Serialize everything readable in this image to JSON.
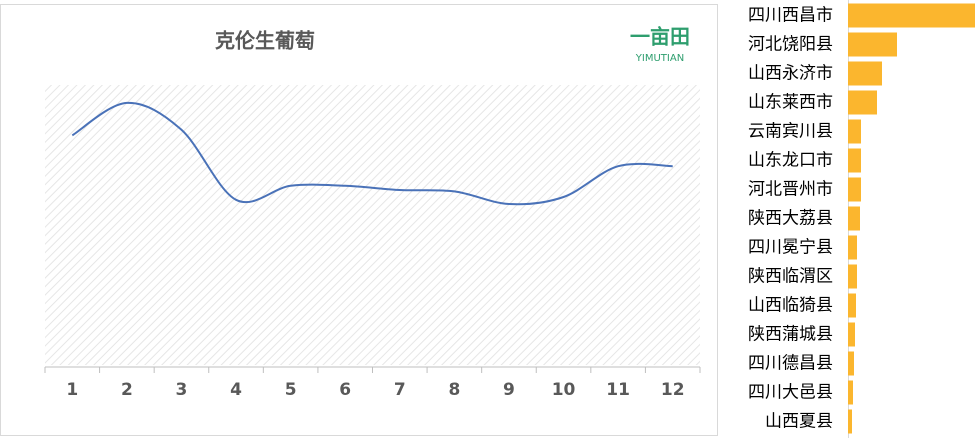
{
  "chart_data": [
    {
      "type": "line",
      "title": "克伦生葡萄",
      "logo": "一亩田",
      "logo_text": "YIMUTIAN",
      "categories": [
        "1",
        "2",
        "3",
        "4",
        "5",
        "6",
        "7",
        "8",
        "9",
        "10",
        "11",
        "12"
      ],
      "values": [
        82,
        93.6,
        84,
        59,
        64,
        64,
        62.5,
        62,
        57.5,
        60,
        71,
        71
      ],
      "color": "#4a72b8",
      "ylim": [
        0,
        100
      ],
      "smooth": true
    },
    {
      "type": "hbar",
      "categories": [
        "四川西昌市",
        "河北饶阳县",
        "山西永济市",
        "山东莱西市",
        "云南宾川县",
        "山东龙口市",
        "河北晋州市",
        "陕西大荔县",
        "四川冕宁县",
        "陕西临渭区",
        "山西临猗县",
        "陕西蒲城县",
        "四川德昌县",
        "四川大邑县",
        "山西夏县"
      ],
      "values": [
        127,
        49,
        34,
        29,
        13,
        13,
        13,
        12,
        9,
        9,
        8,
        7,
        6,
        5,
        4
      ],
      "color": "#fbb62e",
      "xlim": [
        0,
        127
      ]
    }
  ]
}
